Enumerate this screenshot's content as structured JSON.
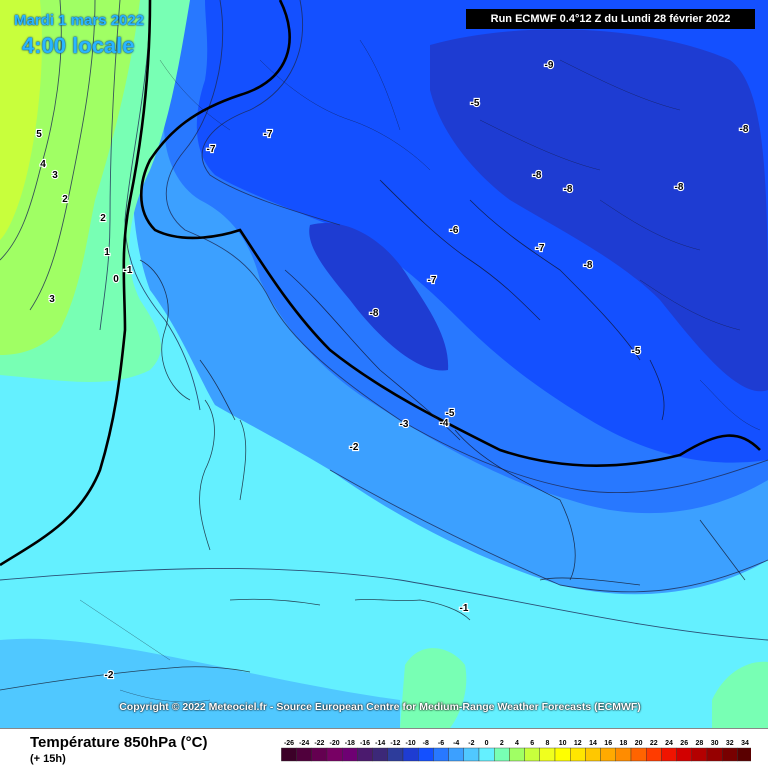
{
  "header": {
    "date_text": "Mardi 1 mars 2022",
    "time_text": "4:00 locale",
    "run_text": "Run ECMWF 0.4°12 Z du Lundi 28 février 2022"
  },
  "footer": {
    "copyright": "Copyright © 2022 Meteociel.fr - Source European Centre for Medium-Range Weather Forecasts (ECMWF)",
    "field_title": "Température 850hPa (°C)",
    "lead_time": "(+ 15h)"
  },
  "color_scale": {
    "ticks": [
      "-26",
      "-24",
      "-22",
      "-20",
      "-18",
      "-16",
      "-14",
      "-12",
      "-10",
      "-8",
      "-6",
      "-4",
      "-2",
      "0",
      "2",
      "4",
      "6",
      "8",
      "10",
      "12",
      "14",
      "16",
      "18",
      "20",
      "22",
      "24",
      "26",
      "28",
      "30",
      "32",
      "34"
    ],
    "colors": [
      "#3c0028",
      "#50003c",
      "#640050",
      "#780064",
      "#6e0073",
      "#4b1a6e",
      "#3c2878",
      "#2d3c9b",
      "#1e3cd2",
      "#1450ff",
      "#2878ff",
      "#3ca0ff",
      "#50c8ff",
      "#64f0ff",
      "#78ffb4",
      "#a0ff64",
      "#c8ff3c",
      "#f0ff1e",
      "#ffff00",
      "#ffe600",
      "#ffc800",
      "#ffaa00",
      "#ff8c00",
      "#ff6400",
      "#ff3c00",
      "#f01400",
      "#d20000",
      "#b40000",
      "#960000",
      "#780000",
      "#5a0000"
    ]
  },
  "map_labels": [
    {
      "text": "-9",
      "temp": -9
    },
    {
      "text": "-5",
      "temp": -5
    },
    {
      "text": "-8",
      "temp": -8
    },
    {
      "text": "-7",
      "temp": -7
    },
    {
      "text": "-7",
      "temp": -7
    },
    {
      "text": "-8",
      "temp": -8
    },
    {
      "text": "-8",
      "temp": -8
    },
    {
      "text": "-8",
      "temp": -8
    },
    {
      "text": "-6",
      "temp": -6
    },
    {
      "text": "-7",
      "temp": -7
    },
    {
      "text": "-8",
      "temp": -8
    },
    {
      "text": "-7",
      "temp": -7
    },
    {
      "text": "-8",
      "temp": -8
    },
    {
      "text": "-5",
      "temp": -5
    },
    {
      "text": "-5",
      "temp": -5
    },
    {
      "text": "-4",
      "temp": -4
    },
    {
      "text": "-3",
      "temp": -3
    },
    {
      "text": "-2",
      "temp": -2
    },
    {
      "text": "-1",
      "temp": -1
    },
    {
      "text": "-1",
      "temp": -1
    },
    {
      "text": "0",
      "temp": 0
    },
    {
      "text": "1",
      "temp": 1
    },
    {
      "text": "2",
      "temp": 2
    },
    {
      "text": "2",
      "temp": 2
    },
    {
      "text": "3",
      "temp": 3
    },
    {
      "text": "3",
      "temp": 3
    },
    {
      "text": "4",
      "temp": 4
    },
    {
      "text": "5",
      "temp": 5
    },
    {
      "text": "-2",
      "temp": -2
    }
  ]
}
